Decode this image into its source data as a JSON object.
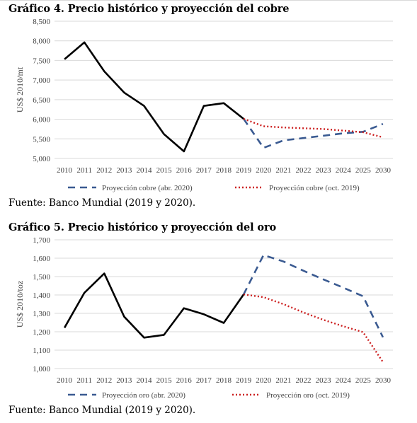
{
  "source_text": "Fuente: Banco Mundial (2019 y 2020).",
  "colors": {
    "historical": "#000000",
    "proj_abr": "#3a5a91",
    "proj_oct": "#cc1f1f",
    "grid": "#d9d9d9",
    "axis_text": "#444444"
  },
  "chart_data": [
    {
      "type": "line",
      "title": "Gráfico 4. Precio histórico y proyección del cobre",
      "ylabel": "US$ 2010/mt",
      "xlabel": "",
      "ylim": [
        5000,
        8500
      ],
      "grid": true,
      "legend_position": "bottom",
      "categories": [
        "2010",
        "2011",
        "2012",
        "2013",
        "2014",
        "2015",
        "2016",
        "2017",
        "2018",
        "2019",
        "2020",
        "2021",
        "2022",
        "2023",
        "2024",
        "2025",
        "2030"
      ],
      "yticks": [
        "5,000",
        "5,500",
        "6,000",
        "6,500",
        "7,000",
        "7,500",
        "8,000",
        "8,500"
      ],
      "ytick_values": [
        5000,
        5500,
        6000,
        6500,
        7000,
        7500,
        8000,
        8500
      ],
      "series": [
        {
          "values": [
            7530,
            7960,
            7220,
            6680,
            6340,
            5620,
            5180,
            6340,
            6410,
            6010,
            null,
            null,
            null,
            null,
            null,
            null,
            null
          ]
        },
        {
          "name": "Proyección cobre (abr. 2020)",
          "values": [
            null,
            null,
            null,
            null,
            null,
            null,
            null,
            null,
            null,
            6010,
            5270,
            5460,
            5520,
            5580,
            5640,
            5680,
            5880
          ]
        },
        {
          "name": "Proyección cobre (oct. 2019)",
          "values": [
            null,
            null,
            null,
            null,
            null,
            null,
            null,
            null,
            null,
            6010,
            5820,
            5790,
            5770,
            5750,
            5710,
            5670,
            5540
          ]
        }
      ]
    },
    {
      "type": "line",
      "title": "Gráfico 5. Precio histórico y proyección del oro",
      "ylabel": "US$ 2010/toz",
      "xlabel": "",
      "ylim": [
        1000,
        1700
      ],
      "grid": true,
      "legend_position": "bottom",
      "categories": [
        "2010",
        "2011",
        "2012",
        "2013",
        "2014",
        "2015",
        "2016",
        "2017",
        "2018",
        "2019",
        "2020",
        "2021",
        "2022",
        "2023",
        "2024",
        "2025",
        "2030"
      ],
      "yticks": [
        "1,000",
        "1,100",
        "1,200",
        "1,300",
        "1,400",
        "1,500",
        "1,600",
        "1,700"
      ],
      "ytick_values": [
        1000,
        1100,
        1200,
        1300,
        1400,
        1500,
        1600,
        1700
      ],
      "series": [
        {
          "values": [
            1222,
            1412,
            1517,
            1282,
            1168,
            1183,
            1328,
            1295,
            1248,
            1403,
            null,
            null,
            null,
            null,
            null,
            null,
            null
          ]
        },
        {
          "name": "Proyección oro (abr. 2020)",
          "values": [
            null,
            null,
            null,
            null,
            null,
            null,
            null,
            null,
            null,
            1403,
            1617,
            1582,
            1532,
            1485,
            1440,
            1393,
            1170
          ]
        },
        {
          "name": "Proyección oro (oct. 2019)",
          "values": [
            null,
            null,
            null,
            null,
            null,
            null,
            null,
            null,
            null,
            1403,
            1388,
            1350,
            1305,
            1265,
            1230,
            1198,
            1035
          ]
        }
      ]
    }
  ]
}
